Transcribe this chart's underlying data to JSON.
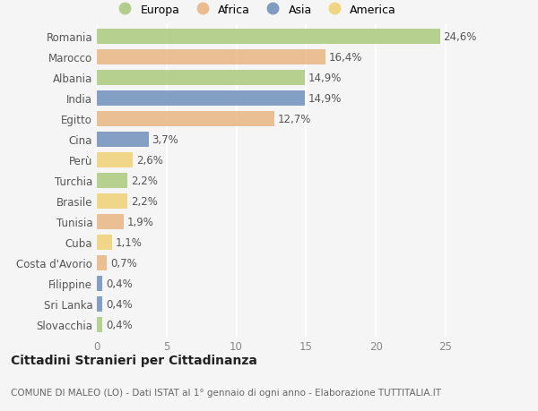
{
  "categories": [
    "Romania",
    "Marocco",
    "Albania",
    "India",
    "Egitto",
    "Cina",
    "Perù",
    "Turchia",
    "Brasile",
    "Tunisia",
    "Cuba",
    "Costa d'Avorio",
    "Filippine",
    "Sri Lanka",
    "Slovacchia"
  ],
  "values": [
    24.6,
    16.4,
    14.9,
    14.9,
    12.7,
    3.7,
    2.6,
    2.2,
    2.2,
    1.9,
    1.1,
    0.7,
    0.4,
    0.4,
    0.4
  ],
  "labels": [
    "24,6%",
    "16,4%",
    "14,9%",
    "14,9%",
    "12,7%",
    "3,7%",
    "2,6%",
    "2,2%",
    "2,2%",
    "1,9%",
    "1,1%",
    "0,7%",
    "0,4%",
    "0,4%",
    "0,4%"
  ],
  "continents": [
    "Europa",
    "Africa",
    "Europa",
    "Asia",
    "Africa",
    "Asia",
    "America",
    "Europa",
    "America",
    "Africa",
    "America",
    "Africa",
    "Asia",
    "Asia",
    "Europa"
  ],
  "colors": {
    "Europa": "#a8c87a",
    "Africa": "#e8b47e",
    "Asia": "#6b8cba",
    "America": "#f0d070"
  },
  "legend_order": [
    "Europa",
    "Africa",
    "Asia",
    "America"
  ],
  "xlim": [
    0,
    27
  ],
  "xticks": [
    0,
    5,
    10,
    15,
    20,
    25
  ],
  "title": "Cittadini Stranieri per Cittadinanza",
  "subtitle": "COMUNE DI MALEO (LO) - Dati ISTAT al 1° gennaio di ogni anno - Elaborazione TUTTITALIA.IT",
  "bg_color": "#f5f5f5",
  "bar_height": 0.72,
  "label_fontsize": 8.5,
  "title_fontsize": 10,
  "subtitle_fontsize": 7.5
}
